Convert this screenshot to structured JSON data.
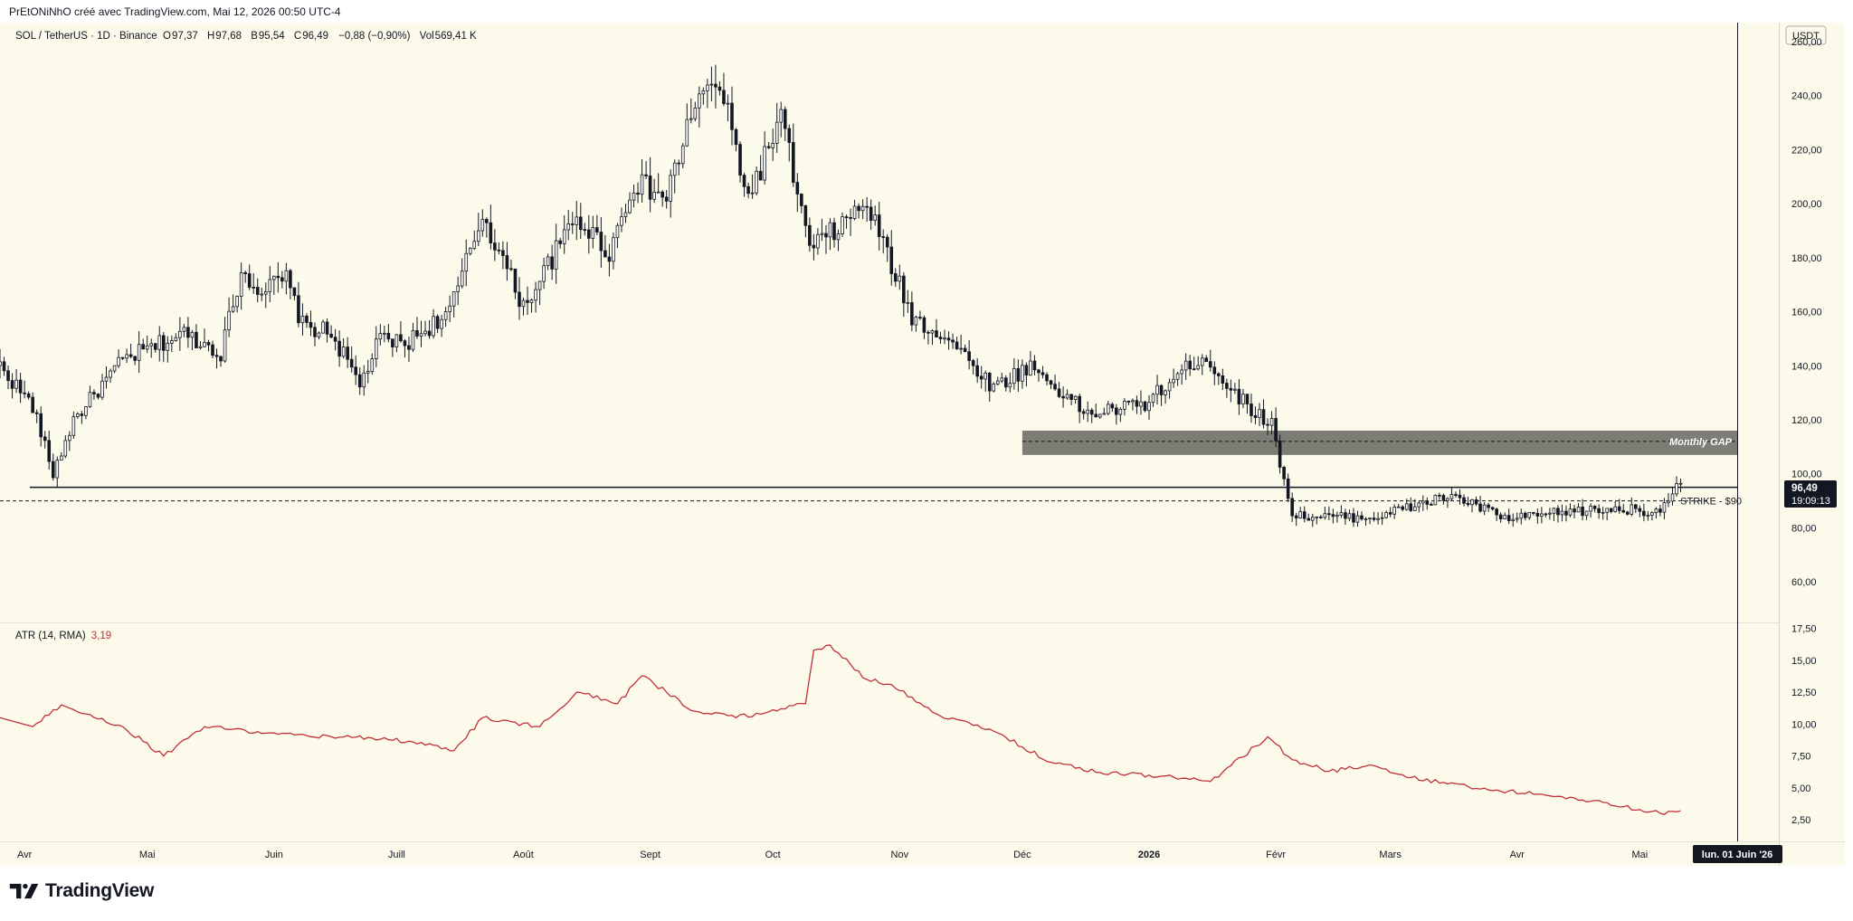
{
  "header": {
    "attribution": "PrEtONiNhO créé avec TradingView.com, Mai 12, 2026 00:50 UTC-4"
  },
  "legend": {
    "symbol": "SOL / TetherUS · 1D · Binance",
    "open_label": "O",
    "open": "97,37",
    "high_label": "H",
    "high": "97,68",
    "low_label": "B",
    "low": "95,54",
    "close_label": "C",
    "close": "96,49",
    "change": "−0,88 (−0,90%)",
    "vol_label": "Vol",
    "vol": "569,41 K"
  },
  "price_axis": {
    "currency": "USDT",
    "ticks": [
      "260,00",
      "240,00",
      "220,00",
      "200,00",
      "180,00",
      "160,00",
      "140,00",
      "120,00",
      "100,00",
      "80,00",
      "60,00"
    ],
    "current_price": "96,49",
    "countdown": "19:09:13"
  },
  "atr_axis": {
    "ticks": [
      "17,50",
      "15,00",
      "12,50",
      "10,00",
      "7,50",
      "5,00",
      "2,50"
    ]
  },
  "time_axis": {
    "labels": [
      "Avr",
      "Mai",
      "Juin",
      "Juill",
      "Août",
      "Sept",
      "Oct",
      "Nov",
      "Déc",
      "2026",
      "Févr",
      "Mars",
      "Avr",
      "Mai"
    ],
    "crosshair_label": "lun. 01 Juin '26"
  },
  "annotations": {
    "monthly_gap": "Monthly GAP",
    "strike": "STRIKE - $90"
  },
  "atr_indicator": {
    "label": "ATR (14, RMA)",
    "value": "3,19"
  },
  "footer": {
    "brand": "TradingView"
  },
  "colors": {
    "background": "#fcfaeb",
    "up_candle": "#ffffff",
    "down_candle": "#131722",
    "atr_line": "#c0303a",
    "gap_zone": "#7d7d76",
    "price_badge": "#131722"
  },
  "chart_data": [
    {
      "type": "candlestick",
      "title": "SOL / TetherUS · 1D · Binance",
      "ylim": [
        45,
        267
      ],
      "horizontal_lines": [
        {
          "label": "",
          "y": 95,
          "style": "solid"
        },
        {
          "label": "STRIKE - $90",
          "y": 90,
          "style": "dashed"
        }
      ],
      "zones": [
        {
          "label": "Monthly GAP",
          "y_low": 107,
          "y_high": 116,
          "mid_dashed": 112,
          "x_start": "2025-12-01"
        }
      ],
      "x_range": [
        "2025-03-26",
        "2026-06-04"
      ],
      "anchors": [
        {
          "date": "2025-03-26",
          "price": 140
        },
        {
          "date": "2025-04-03",
          "price": 125
        },
        {
          "date": "2025-04-08",
          "price": 100
        },
        {
          "date": "2025-04-13",
          "price": 120
        },
        {
          "date": "2025-04-25",
          "price": 142
        },
        {
          "date": "2025-05-10",
          "price": 152
        },
        {
          "date": "2025-05-19",
          "price": 145
        },
        {
          "date": "2025-05-24",
          "price": 175
        },
        {
          "date": "2025-05-29",
          "price": 168
        },
        {
          "date": "2025-06-04",
          "price": 172
        },
        {
          "date": "2025-06-08",
          "price": 155
        },
        {
          "date": "2025-06-15",
          "price": 152
        },
        {
          "date": "2025-06-22",
          "price": 133
        },
        {
          "date": "2025-06-27",
          "price": 150
        },
        {
          "date": "2025-07-03",
          "price": 148
        },
        {
          "date": "2025-07-14",
          "price": 160
        },
        {
          "date": "2025-07-22",
          "price": 196
        },
        {
          "date": "2025-08-01",
          "price": 162
        },
        {
          "date": "2025-08-14",
          "price": 195
        },
        {
          "date": "2025-08-22",
          "price": 182
        },
        {
          "date": "2025-08-28",
          "price": 208
        },
        {
          "date": "2025-09-05",
          "price": 202
        },
        {
          "date": "2025-09-12",
          "price": 238
        },
        {
          "date": "2025-09-18",
          "price": 244
        },
        {
          "date": "2025-09-25",
          "price": 202
        },
        {
          "date": "2025-10-03",
          "price": 232
        },
        {
          "date": "2025-10-10",
          "price": 183
        },
        {
          "date": "2025-10-16",
          "price": 190
        },
        {
          "date": "2025-10-24",
          "price": 200
        },
        {
          "date": "2025-11-04",
          "price": 158
        },
        {
          "date": "2025-11-13",
          "price": 150
        },
        {
          "date": "2025-11-24",
          "price": 132
        },
        {
          "date": "2025-12-03",
          "price": 140
        },
        {
          "date": "2025-12-17",
          "price": 122
        },
        {
          "date": "2025-12-31",
          "price": 126
        },
        {
          "date": "2026-01-14",
          "price": 144
        },
        {
          "date": "2026-01-23",
          "price": 128
        },
        {
          "date": "2026-01-31",
          "price": 118
        },
        {
          "date": "2026-02-05",
          "price": 85
        },
        {
          "date": "2026-02-10",
          "price": 84
        },
        {
          "date": "2026-02-25",
          "price": 84
        },
        {
          "date": "2026-03-16",
          "price": 92
        },
        {
          "date": "2026-03-30",
          "price": 83
        },
        {
          "date": "2026-04-13",
          "price": 86
        },
        {
          "date": "2026-04-27",
          "price": 87
        },
        {
          "date": "2026-05-05",
          "price": 86
        },
        {
          "date": "2026-05-11",
          "price": 96.5
        }
      ]
    },
    {
      "type": "line",
      "title": "ATR (14, RMA)",
      "ylim": [
        0.8,
        17.9
      ],
      "series": [
        {
          "name": "ATR (14, RMA)",
          "x": [
            "2025-03-26",
            "2025-04-03",
            "2025-04-10",
            "2025-04-25",
            "2025-05-05",
            "2025-05-15",
            "2025-05-22",
            "2025-06-02",
            "2025-06-15",
            "2025-06-25",
            "2025-07-05",
            "2025-07-15",
            "2025-07-22",
            "2025-08-05",
            "2025-08-14",
            "2025-08-24",
            "2025-08-30",
            "2025-09-12",
            "2025-09-22",
            "2025-10-03",
            "2025-10-09",
            "2025-10-11",
            "2025-10-15",
            "2025-10-24",
            "2025-10-30",
            "2025-11-10",
            "2025-11-25",
            "2025-12-08",
            "2025-12-20",
            "2026-01-01",
            "2026-01-16",
            "2026-01-30",
            "2026-02-05",
            "2026-02-14",
            "2026-02-24",
            "2026-03-06",
            "2026-03-20",
            "2026-04-05",
            "2026-04-20",
            "2026-05-01",
            "2026-05-06",
            "2026-05-11"
          ],
          "values": [
            10.5,
            9.8,
            11.5,
            9.8,
            7.5,
            9.8,
            9.6,
            9.2,
            9.0,
            8.9,
            8.6,
            7.9,
            10.5,
            9.8,
            12.5,
            11.6,
            13.8,
            11.0,
            10.5,
            11.2,
            11.6,
            15.8,
            16.2,
            13.5,
            13.1,
            10.8,
            9.3,
            7.0,
            6.2,
            6.0,
            5.5,
            9.0,
            7.2,
            6.3,
            6.8,
            5.8,
            5.1,
            4.5,
            4.0,
            3.3,
            3.0,
            3.19
          ]
        }
      ]
    }
  ]
}
